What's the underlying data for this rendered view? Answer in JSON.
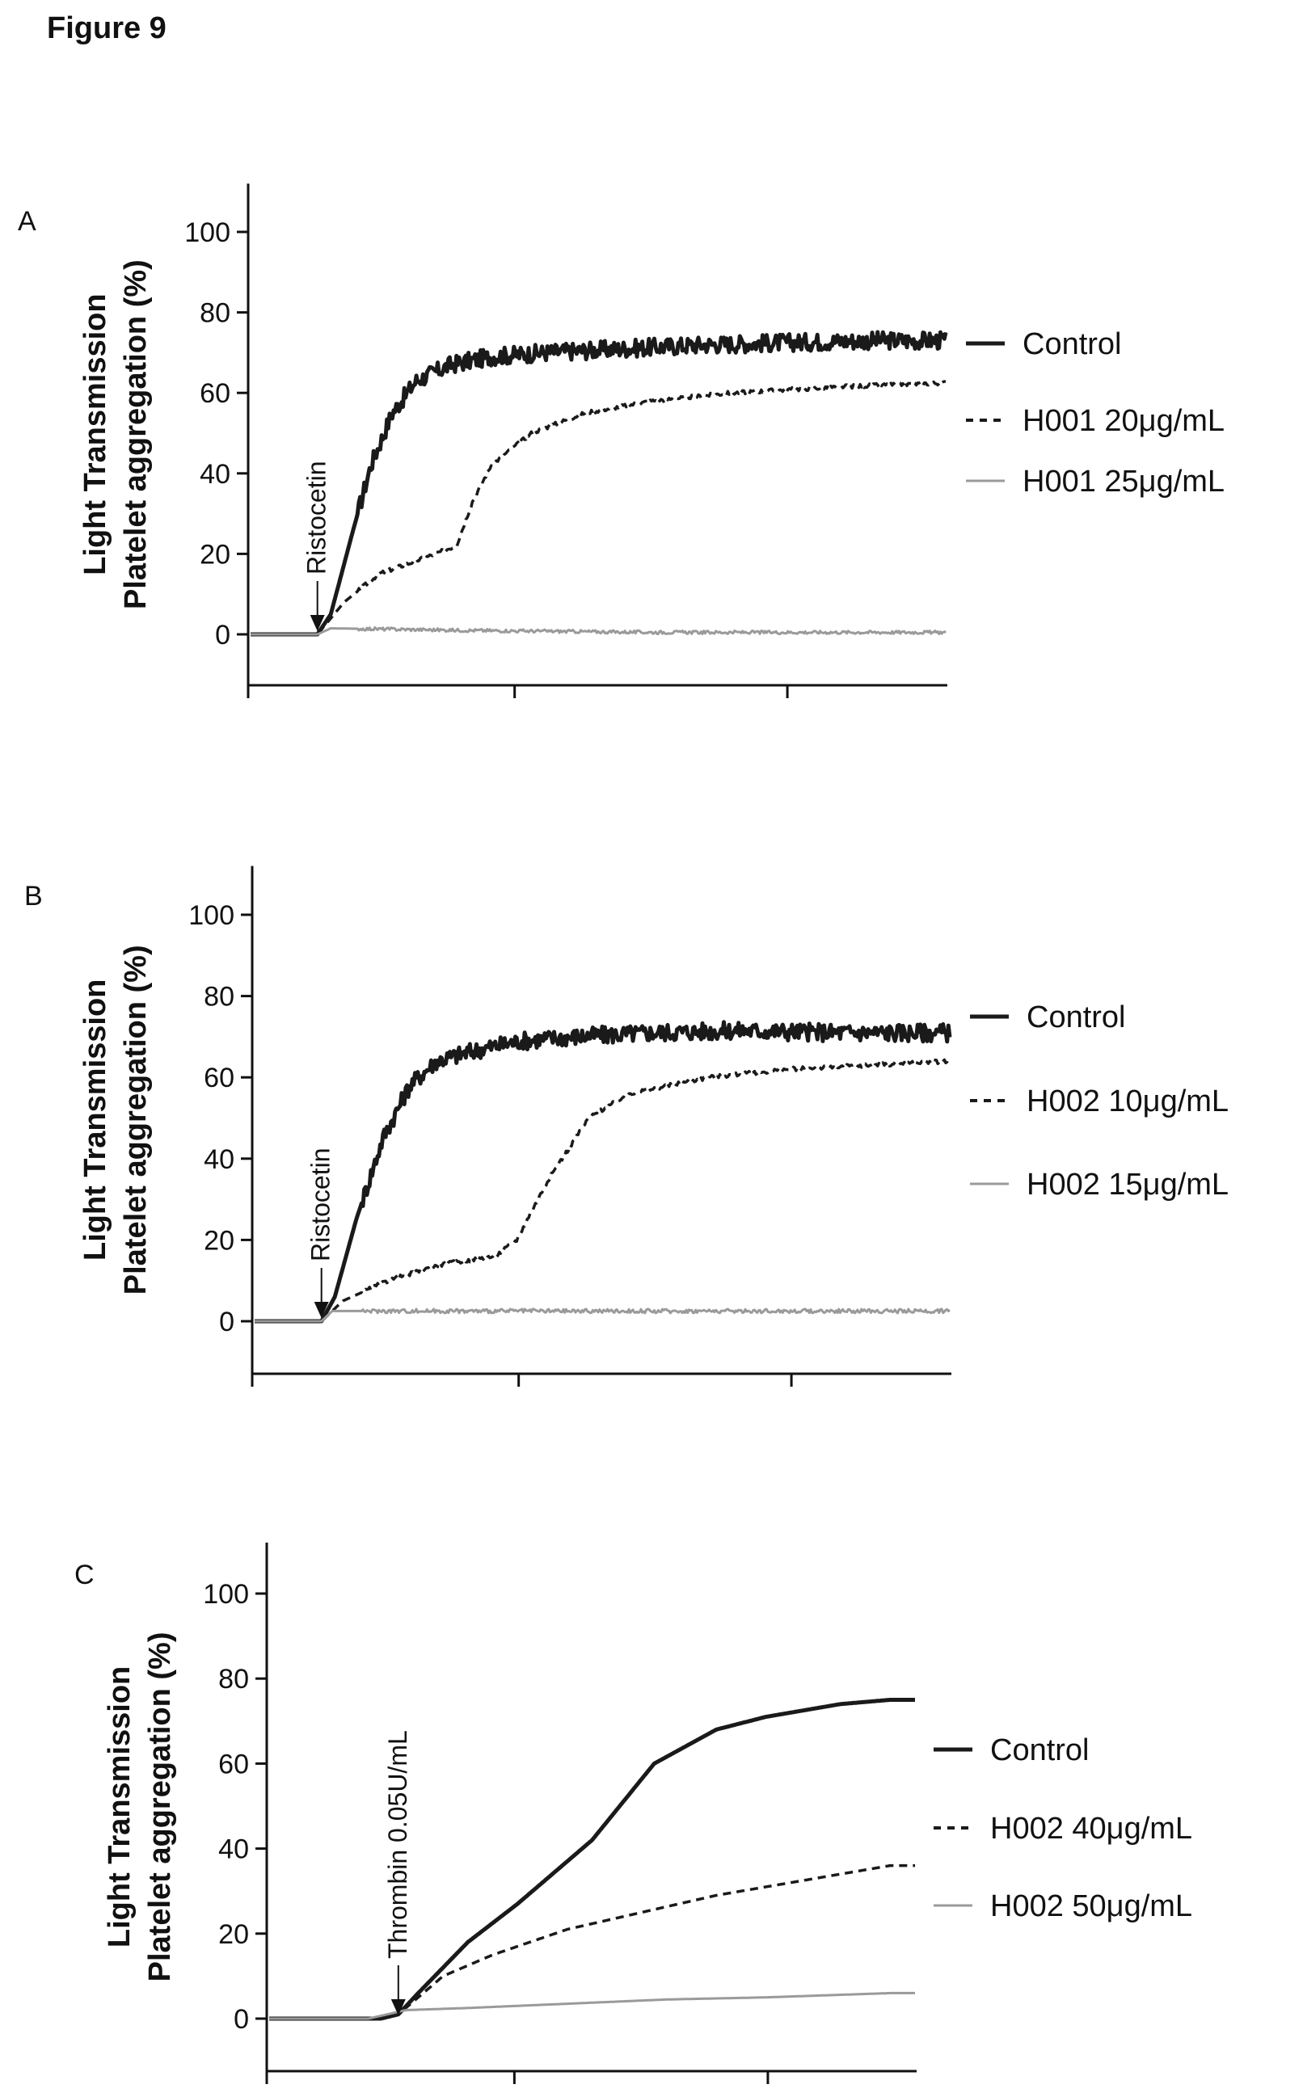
{
  "figure_title": "Figure 9",
  "chart_data": [
    {
      "type": "line",
      "panel": "A",
      "ylabel_lines": [
        "Light Transmission",
        "Platelet aggregation (%)"
      ],
      "ylim": [
        -12,
        112
      ],
      "yticks": [
        0,
        20,
        40,
        60,
        80,
        100
      ],
      "xticks_labeled": false,
      "xlim": [
        0,
        26
      ],
      "annotation": {
        "text": "Ristocetin",
        "x": 2.5
      },
      "legend_position": "right",
      "series": [
        {
          "name": "Control",
          "style": "solid-thick",
          "color": "#1a1a1a",
          "noise": 2.2,
          "points": [
            [
              0,
              0
            ],
            [
              2.5,
              0
            ],
            [
              3.0,
              5
            ],
            [
              3.8,
              25
            ],
            [
              4.5,
              42
            ],
            [
              5.3,
              55
            ],
            [
              6.2,
              63
            ],
            [
              7.5,
              67
            ],
            [
              9,
              69
            ],
            [
              11,
              70
            ],
            [
              14,
              71
            ],
            [
              17,
              72
            ],
            [
              20,
              72.5
            ],
            [
              23,
              73
            ],
            [
              26,
              73
            ]
          ]
        },
        {
          "name": "H001 20μg/mL",
          "style": "dashed",
          "color": "#1a1a1a",
          "noise": 0.5,
          "points": [
            [
              0,
              0
            ],
            [
              2.5,
              0
            ],
            [
              3.5,
              8
            ],
            [
              4.8,
              15
            ],
            [
              6.5,
              19
            ],
            [
              7.7,
              22
            ],
            [
              8.3,
              33
            ],
            [
              9.0,
              42
            ],
            [
              10.5,
              50
            ],
            [
              12.5,
              55
            ],
            [
              15,
              58
            ],
            [
              18,
              60
            ],
            [
              22,
              61.5
            ],
            [
              26,
              62.5
            ]
          ]
        },
        {
          "name": "H001 25μg/mL",
          "style": "solid-light",
          "color": "#9a9a9a",
          "noise": 0.4,
          "points": [
            [
              0,
              0
            ],
            [
              2.5,
              0
            ],
            [
              3.0,
              1.5
            ],
            [
              8,
              1
            ],
            [
              15,
              0.5
            ],
            [
              26,
              0.5
            ]
          ]
        }
      ]
    },
    {
      "type": "line",
      "panel": "B",
      "ylabel_lines": [
        "Light Transmission",
        "Platelet aggregation (%)"
      ],
      "ylim": [
        -12,
        112
      ],
      "yticks": [
        0,
        20,
        40,
        60,
        80,
        100
      ],
      "xticks_labeled": false,
      "xlim": [
        0,
        26
      ],
      "annotation": {
        "text": "Ristocetin",
        "x": 2.5
      },
      "legend_position": "right",
      "series": [
        {
          "name": "Control",
          "style": "solid-thick",
          "color": "#1a1a1a",
          "noise": 2.2,
          "points": [
            [
              0,
              0
            ],
            [
              2.5,
              0
            ],
            [
              3.0,
              6
            ],
            [
              3.8,
              25
            ],
            [
              4.8,
              45
            ],
            [
              5.8,
              58
            ],
            [
              6.8,
              64
            ],
            [
              8.5,
              67
            ],
            [
              10,
              69
            ],
            [
              12,
              70
            ],
            [
              15,
              71
            ],
            [
              18,
              71.5
            ],
            [
              22,
              71
            ],
            [
              26,
              71
            ]
          ]
        },
        {
          "name": "H002 10μg/mL",
          "style": "dashed",
          "color": "#1a1a1a",
          "noise": 0.5,
          "points": [
            [
              0,
              0
            ],
            [
              2.5,
              0
            ],
            [
              3.3,
              5
            ],
            [
              5,
              10
            ],
            [
              7,
              14
            ],
            [
              9,
              16
            ],
            [
              9.8,
              20
            ],
            [
              11,
              35
            ],
            [
              12.5,
              50
            ],
            [
              14,
              56
            ],
            [
              17,
              60
            ],
            [
              20,
              62
            ],
            [
              23,
              63
            ],
            [
              26,
              64
            ]
          ]
        },
        {
          "name": "H002 15μg/mL",
          "style": "solid-light",
          "color": "#9a9a9a",
          "noise": 0.5,
          "points": [
            [
              0,
              0
            ],
            [
              2.5,
              0
            ],
            [
              2.9,
              2.5
            ],
            [
              10,
              2.5
            ],
            [
              18,
              2.5
            ],
            [
              26,
              2.5
            ]
          ]
        }
      ]
    },
    {
      "type": "line",
      "panel": "C",
      "ylabel_lines": [
        "Light Transmission",
        "Platelet aggregation (%)"
      ],
      "ylim": [
        -12,
        112
      ],
      "yticks": [
        0,
        20,
        40,
        60,
        80,
        100
      ],
      "xticks_labeled": false,
      "xlim": [
        0,
        26
      ],
      "annotation": {
        "text": "Thrombin 0.05U/mL",
        "x": 5.2
      },
      "legend_position": "right",
      "series": [
        {
          "name": "Control",
          "style": "solid-thick",
          "color": "#1a1a1a",
          "noise": 0,
          "points": [
            [
              0,
              0
            ],
            [
              4.5,
              0
            ],
            [
              5.2,
              1
            ],
            [
              6,
              6
            ],
            [
              8,
              18
            ],
            [
              10,
              27
            ],
            [
              13,
              42
            ],
            [
              15.5,
              60
            ],
            [
              18,
              68
            ],
            [
              20,
              71
            ],
            [
              23,
              74
            ],
            [
              25,
              75
            ]
          ]
        },
        {
          "name": "H002 40μg/mL",
          "style": "dashed",
          "color": "#1a1a1a",
          "noise": 0,
          "points": [
            [
              0,
              0
            ],
            [
              4,
              0
            ],
            [
              5.2,
              1
            ],
            [
              7,
              10
            ],
            [
              9,
              15
            ],
            [
              12,
              21
            ],
            [
              15,
              25
            ],
            [
              18,
              29
            ],
            [
              21,
              32
            ],
            [
              25,
              36
            ]
          ]
        },
        {
          "name": "H002 50μg/mL",
          "style": "solid-light",
          "color": "#9a9a9a",
          "noise": 0,
          "points": [
            [
              0,
              0
            ],
            [
              4,
              0
            ],
            [
              5.5,
              2
            ],
            [
              8,
              2.5
            ],
            [
              12,
              3.5
            ],
            [
              16,
              4.5
            ],
            [
              20,
              5
            ],
            [
              25,
              6
            ]
          ]
        }
      ]
    }
  ]
}
